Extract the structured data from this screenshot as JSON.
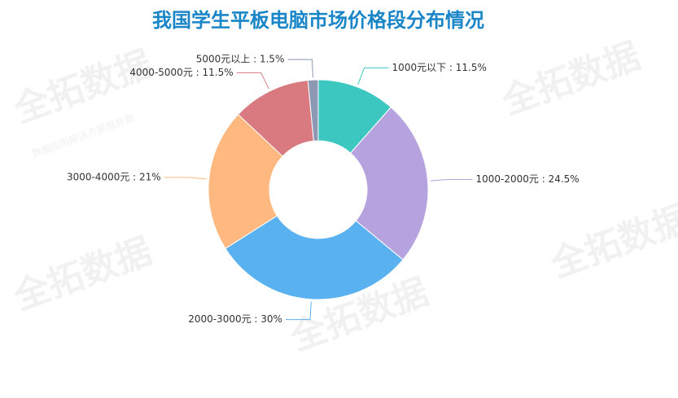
{
  "chart_data": {
    "type": "pie",
    "title": "我国学生平板电脑市场价格段分布情况",
    "values": [
      11.5,
      24.5,
      30,
      21,
      11.5,
      1.5
    ],
    "value_labels": [
      "1000元以下 : 11.5%",
      "1000-2000元 : 24.5%",
      "2000-3000元 : 30%",
      "3000-4000元 : 21%",
      "4000-5000元 : 11.5%",
      "5000元以上 : 1.5%"
    ],
    "colors": [
      "#3cc8c0",
      "#b6a2de",
      "#5ab1ef",
      "#ffb980",
      "#d87a80",
      "#8d98b3"
    ],
    "donut": true
  },
  "watermark": {
    "title": "全拓数据",
    "subtitle": "数据应用解决方案服务商"
  }
}
